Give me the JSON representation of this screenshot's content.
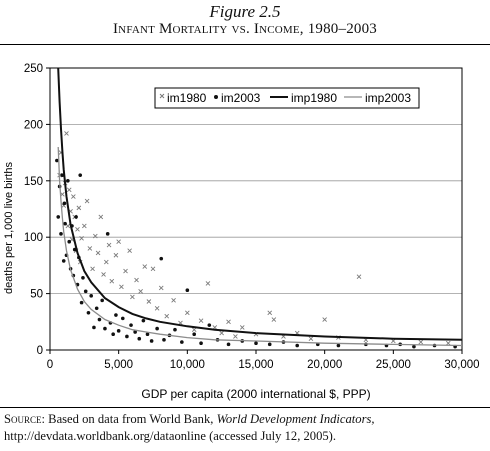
{
  "figure": {
    "label": "Figure 2.5",
    "title": "Infant Mortality vs. Income, 1980–2003"
  },
  "source": {
    "prefix": "Source:",
    "text_before": " Based on data from World Bank, ",
    "publication": "World Development Indicators,",
    "text_after": " http://devdata.worldbank.org/dataonline (accessed July 12, 2005)."
  },
  "colors": {
    "im1980": "#7a7a7a",
    "im2003": "#111111",
    "imp1980": "#111111",
    "imp2003": "#8c8c8c",
    "gridline": "#9a9a9a"
  },
  "chart_data": {
    "type": "scatter",
    "xlabel": "GDP per capita (2000 international $, PPP)",
    "ylabel": "deaths per 1,000 live births",
    "xlim": [
      0,
      30000
    ],
    "ylim": [
      0,
      250
    ],
    "xticks": [
      0,
      5000,
      10000,
      15000,
      20000,
      25000,
      30000
    ],
    "xtick_labels": [
      "0",
      "5,000",
      "10,000",
      "15,000",
      "20,000",
      "25,000",
      "30,000"
    ],
    "yticks": [
      0,
      50,
      100,
      150,
      200,
      250
    ],
    "ytick_labels": [
      "0",
      "50",
      "100",
      "150",
      "200",
      "250"
    ],
    "grid": "horizontal",
    "legend_position": "top-right",
    "series": [
      {
        "name": "im1980",
        "kind": "scatter",
        "marker": "x",
        "points": [
          [
            700,
            155
          ],
          [
            800,
            175
          ],
          [
            900,
            138
          ],
          [
            1000,
            128
          ],
          [
            1100,
            148
          ],
          [
            1200,
            192
          ],
          [
            1300,
            110
          ],
          [
            1400,
            142
          ],
          [
            1500,
            123
          ],
          [
            1600,
            98
          ],
          [
            1700,
            136
          ],
          [
            1800,
            118
          ],
          [
            1900,
            88
          ],
          [
            2000,
            107
          ],
          [
            2100,
            126
          ],
          [
            2200,
            78
          ],
          [
            2300,
            99
          ],
          [
            2500,
            110
          ],
          [
            2700,
            132
          ],
          [
            2900,
            90
          ],
          [
            3100,
            72
          ],
          [
            3300,
            101
          ],
          [
            3500,
            86
          ],
          [
            3700,
            118
          ],
          [
            3900,
            67
          ],
          [
            4100,
            78
          ],
          [
            4300,
            93
          ],
          [
            4500,
            61
          ],
          [
            4800,
            84
          ],
          [
            5000,
            96
          ],
          [
            5200,
            56
          ],
          [
            5500,
            70
          ],
          [
            5800,
            88
          ],
          [
            6000,
            47
          ],
          [
            6300,
            62
          ],
          [
            6600,
            52
          ],
          [
            6900,
            74
          ],
          [
            7200,
            43
          ],
          [
            7500,
            72
          ],
          [
            7800,
            37
          ],
          [
            8100,
            55
          ],
          [
            8500,
            30
          ],
          [
            9000,
            44
          ],
          [
            9500,
            24
          ],
          [
            10000,
            33
          ],
          [
            10500,
            18
          ],
          [
            11000,
            26
          ],
          [
            11500,
            59
          ],
          [
            12000,
            20
          ],
          [
            12500,
            15
          ],
          [
            13000,
            25
          ],
          [
            13500,
            12
          ],
          [
            14000,
            20
          ],
          [
            15000,
            14
          ],
          [
            16000,
            33
          ],
          [
            16300,
            27
          ],
          [
            17000,
            12
          ],
          [
            18000,
            15
          ],
          [
            19000,
            10
          ],
          [
            20000,
            27
          ],
          [
            21000,
            11
          ],
          [
            22500,
            65
          ],
          [
            23000,
            9
          ],
          [
            25000,
            8
          ],
          [
            27000,
            7
          ],
          [
            29000,
            6
          ]
        ]
      },
      {
        "name": "im2003",
        "kind": "scatter",
        "marker": "dot",
        "points": [
          [
            500,
            168
          ],
          [
            600,
            118
          ],
          [
            700,
            145
          ],
          [
            800,
            103
          ],
          [
            900,
            155
          ],
          [
            1000,
            79
          ],
          [
            1050,
            130
          ],
          [
            1100,
            112
          ],
          [
            1200,
            84
          ],
          [
            1300,
            150
          ],
          [
            1400,
            96
          ],
          [
            1500,
            72
          ],
          [
            1600,
            110
          ],
          [
            1700,
            66
          ],
          [
            1800,
            89
          ],
          [
            1900,
            118
          ],
          [
            2000,
            58
          ],
          [
            2100,
            82
          ],
          [
            2200,
            155
          ],
          [
            2300,
            42
          ],
          [
            2400,
            64
          ],
          [
            2600,
            52
          ],
          [
            2800,
            33
          ],
          [
            3000,
            48
          ],
          [
            3200,
            20
          ],
          [
            3400,
            37
          ],
          [
            3600,
            27
          ],
          [
            3800,
            44
          ],
          [
            4000,
            19
          ],
          [
            4200,
            103
          ],
          [
            4400,
            24
          ],
          [
            4600,
            14
          ],
          [
            4800,
            31
          ],
          [
            5000,
            17
          ],
          [
            5300,
            28
          ],
          [
            5600,
            12
          ],
          [
            5900,
            22
          ],
          [
            6200,
            16
          ],
          [
            6500,
            10
          ],
          [
            6800,
            26
          ],
          [
            7100,
            14
          ],
          [
            7400,
            8
          ],
          [
            7800,
            19
          ],
          [
            8100,
            81
          ],
          [
            8300,
            9
          ],
          [
            8700,
            13
          ],
          [
            9100,
            18
          ],
          [
            9600,
            7
          ],
          [
            10000,
            53
          ],
          [
            10500,
            14
          ],
          [
            11000,
            6
          ],
          [
            11600,
            22
          ],
          [
            12200,
            9
          ],
          [
            13000,
            5
          ],
          [
            14000,
            8
          ],
          [
            15000,
            6
          ],
          [
            16000,
            5
          ],
          [
            17000,
            7
          ],
          [
            18000,
            4
          ],
          [
            19500,
            5
          ],
          [
            21000,
            4
          ],
          [
            23000,
            5
          ],
          [
            24500,
            4
          ],
          [
            25500,
            5
          ],
          [
            26500,
            3
          ],
          [
            28000,
            4
          ],
          [
            29500,
            3
          ]
        ]
      },
      {
        "name": "imp1980",
        "kind": "line",
        "points": [
          [
            600,
            250
          ],
          [
            700,
            220
          ],
          [
            800,
            196
          ],
          [
            900,
            176
          ],
          [
            1000,
            160
          ],
          [
            1200,
            136
          ],
          [
            1500,
            111
          ],
          [
            2000,
            86
          ],
          [
            2500,
            70
          ],
          [
            3000,
            60
          ],
          [
            4000,
            46
          ],
          [
            5000,
            38
          ],
          [
            6000,
            32
          ],
          [
            7000,
            28
          ],
          [
            8000,
            25
          ],
          [
            10000,
            21
          ],
          [
            12000,
            18
          ],
          [
            15000,
            15
          ],
          [
            20000,
            12
          ],
          [
            25000,
            10
          ],
          [
            30000,
            9
          ]
        ]
      },
      {
        "name": "imp2003",
        "kind": "line",
        "points": [
          [
            600,
            180
          ],
          [
            700,
            150
          ],
          [
            800,
            132
          ],
          [
            900,
            117
          ],
          [
            1000,
            105
          ],
          [
            1200,
            88
          ],
          [
            1500,
            71
          ],
          [
            2000,
            54
          ],
          [
            2500,
            43
          ],
          [
            3000,
            36
          ],
          [
            4000,
            27
          ],
          [
            5000,
            22
          ],
          [
            6000,
            18
          ],
          [
            7000,
            16
          ],
          [
            8000,
            14
          ],
          [
            10000,
            11
          ],
          [
            12000,
            9
          ],
          [
            15000,
            8
          ],
          [
            20000,
            6
          ],
          [
            25000,
            5
          ],
          [
            30000,
            4
          ]
        ]
      }
    ]
  }
}
